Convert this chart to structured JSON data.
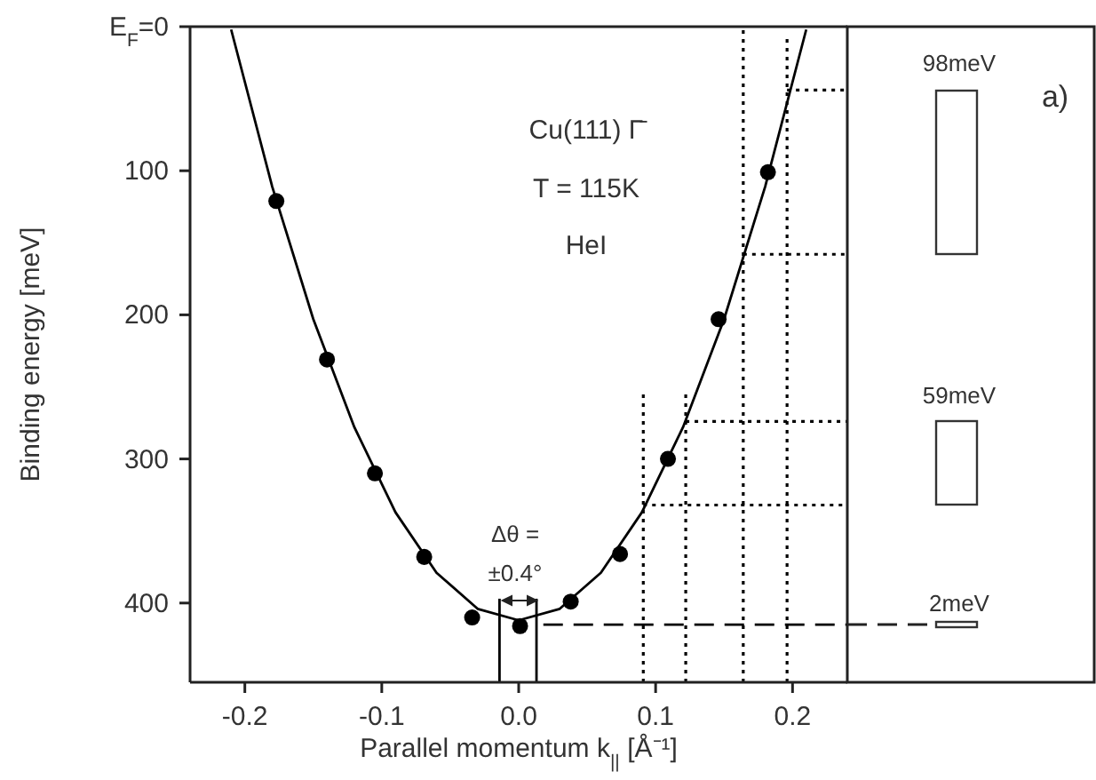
{
  "chart_data": {
    "type": "line",
    "xlabel": "Parallel momentum k$_{||}$ [Å⁻¹]",
    "ylabel": "Binding energy [meV]",
    "xlim": [
      -0.24,
      0.24
    ],
    "ylim": [
      455,
      0
    ],
    "xticks": [
      -0.2,
      -0.1,
      {
        "value": 0,
        "label": "0.0"
      },
      0.1,
      0.2
    ],
    "yticks": [
      {
        "value": 0,
        "label": "E$_{F}$=0"
      },
      100,
      200,
      300,
      400
    ],
    "grid": false,
    "legend": false,
    "annotations": [
      "Cu(111)  Γ̄",
      "T = 115K",
      "HeI",
      "Δθ =",
      "±0.4°",
      "98meV",
      "59meV",
      "2meV",
      "a)"
    ],
    "series": [
      {
        "color": "#000000",
        "line_style": "solid",
        "marker": "none",
        "x": [
          -0.21,
          -0.18,
          -0.15,
          -0.12,
          -0.09,
          -0.06,
          -0.03,
          0,
          0.03,
          0.06,
          0.09,
          0.12,
          0.15,
          0.18,
          0.21
        ],
        "values": [
          2,
          111,
          203,
          278,
          337,
          379,
          404,
          412,
          404,
          379,
          337,
          278,
          203,
          111,
          2
        ]
      },
      {
        "type": "scatter",
        "color": "#000000",
        "marker": "circle",
        "x": [
          -0.177,
          -0.14,
          -0.105,
          -0.069,
          -0.034,
          0.001,
          0.038,
          0.074,
          0.109,
          0.146,
          0.182
        ],
        "values": [
          121,
          231,
          310,
          368,
          410,
          416,
          399,
          366,
          300,
          203,
          101
        ]
      },
      {
        "type": "line",
        "color": "#000000",
        "line_style": "dashed",
        "marker": "none",
        "x": [
          0.018,
          0.24
        ],
        "values": [
          415,
          415
        ]
      },
      {
        "type": "line",
        "color": "#000000",
        "line_style": "solid",
        "marker": "none",
        "x": [
          -0.014,
          -0.014
        ],
        "values": [
          455,
          397
        ]
      },
      {
        "type": "line",
        "color": "#000000",
        "line_style": "solid",
        "marker": "none",
        "x": [
          0.013,
          0.013
        ],
        "values": [
          455,
          397
        ]
      },
      {
        "type": "line",
        "color": "#000000",
        "line_style": "dotted",
        "marker": "none",
        "x": [
          0.091,
          0.091
        ],
        "values": [
          455,
          253
        ]
      },
      {
        "type": "line",
        "color": "#000000",
        "line_style": "dotted",
        "marker": "none",
        "x": [
          0.122,
          0.122
        ],
        "values": [
          455,
          253
        ]
      },
      {
        "type": "line",
        "color": "#000000",
        "line_style": "dotted",
        "marker": "none",
        "x": [
          0.164,
          0.164
        ],
        "values": [
          455,
          0
        ]
      },
      {
        "type": "line",
        "color": "#000000",
        "line_style": "dotted",
        "marker": "none",
        "x": [
          0.196,
          0.196
        ],
        "values": [
          455,
          6
        ]
      },
      {
        "type": "line",
        "color": "#000000",
        "line_style": "dotted",
        "marker": "none",
        "x": [
          0.196,
          0.24
        ],
        "values": [
          44,
          44
        ]
      },
      {
        "type": "line",
        "color": "#000000",
        "line_style": "dotted",
        "marker": "none",
        "x": [
          0.164,
          0.24
        ],
        "values": [
          158,
          158
        ]
      },
      {
        "type": "line",
        "color": "#000000",
        "line_style": "dotted",
        "marker": "none",
        "x": [
          0.122,
          0.24
        ],
        "values": [
          274,
          274
        ]
      },
      {
        "type": "line",
        "color": "#000000",
        "line_style": "dotted",
        "marker": "none",
        "x": [
          0.091,
          0.24
        ],
        "values": [
          332,
          332
        ]
      }
    ]
  }
}
